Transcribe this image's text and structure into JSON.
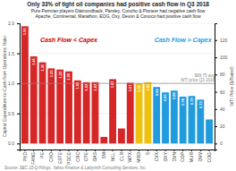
{
  "chart_data": {
    "type": "bar",
    "title": "Only 33% of tight oil companies had positive cash flow in Q3 2018",
    "subtitle": [
      "Pure Permian players Diamondback, Parsley, Concho & Pioneer had negative cash flow",
      "Apache, Continental, Marathon, EOG, Oxy, Devon & Conoco had positive cash flow"
    ],
    "categories": [
      "PXD",
      "FANG",
      "PE",
      "CXO",
      "ESTE",
      "PDCE",
      "CRC",
      "CPE",
      "OAS",
      "SM",
      "WLL",
      "CLR",
      "WPX",
      "MRO",
      "S",
      "CVX",
      "OXY",
      "DVN",
      "COP",
      "MUR",
      "OVV",
      "COG"
    ],
    "values": [
      1.95,
      1.45,
      1.35,
      1.25,
      1.23,
      1.2,
      1.05,
      1.02,
      1.02,
      0.11,
      1.07,
      0.25,
      1.01,
      1.0,
      1.02,
      0.94,
      0.85,
      0.88,
      0.78,
      0.79,
      0.73,
      0.4
    ],
    "value_labels": [
      "1.95",
      "1.45",
      "1.35",
      "1.25",
      "1.23",
      "1.20",
      "1.05",
      "1.02",
      "1.02",
      null,
      "1.07",
      null,
      "1.01",
      "1.00",
      "1.02",
      "0.94",
      "0.85",
      "0.88",
      "0.78",
      "0.79",
      "0.73",
      null
    ],
    "colors": [
      "#d62728",
      "#d62728",
      "#d62728",
      "#d62728",
      "#d62728",
      "#d62728",
      "#d62728",
      "#d62728",
      "#d62728",
      "#d62728",
      "#d62728",
      "#d62728",
      "#d62728",
      "#f0c010",
      "#f0c010",
      "#1f9bde",
      "#1f9bde",
      "#1f9bde",
      "#1f9bde",
      "#1f9bde",
      "#1f9bde",
      "#1f9bde"
    ],
    "data_labels": true,
    "ylabel": "Capital Expenditure-to-Cash from Operations Ratio",
    "y2label": "WTI Price ($/Barrel)",
    "ylim": [
      -0.1,
      2.0
    ],
    "yticks": [
      {
        "value": 0,
        "label": "0.0"
      },
      {
        "value": 0.5,
        "label": "0.5"
      },
      {
        "value": 1.0,
        "label": "1.0"
      },
      {
        "value": 1.5,
        "label": "1.5"
      },
      {
        "value": 2.0,
        "label": "2.0"
      }
    ],
    "y2lim": [
      -6.975,
      139.5
    ],
    "y2ticks": [
      0,
      20,
      40,
      60,
      80,
      100,
      120
    ],
    "hline": {
      "value": 1.0,
      "label": "$69.75 avg\nWTI price Q3 2018"
    },
    "annotations": [
      {
        "text": "Cash Flow < Capex",
        "x": "PDCE",
        "y": 1.72,
        "color": "#cc0000"
      },
      {
        "text": "Cash Flow > Capex",
        "x": "COP",
        "y": 1.72,
        "color": "#1f9bde"
      }
    ],
    "grid": true,
    "source": "Source: SEC 10-Q Filings, Yahoo Finance & Labyrinth Consulting Services, Inc."
  }
}
